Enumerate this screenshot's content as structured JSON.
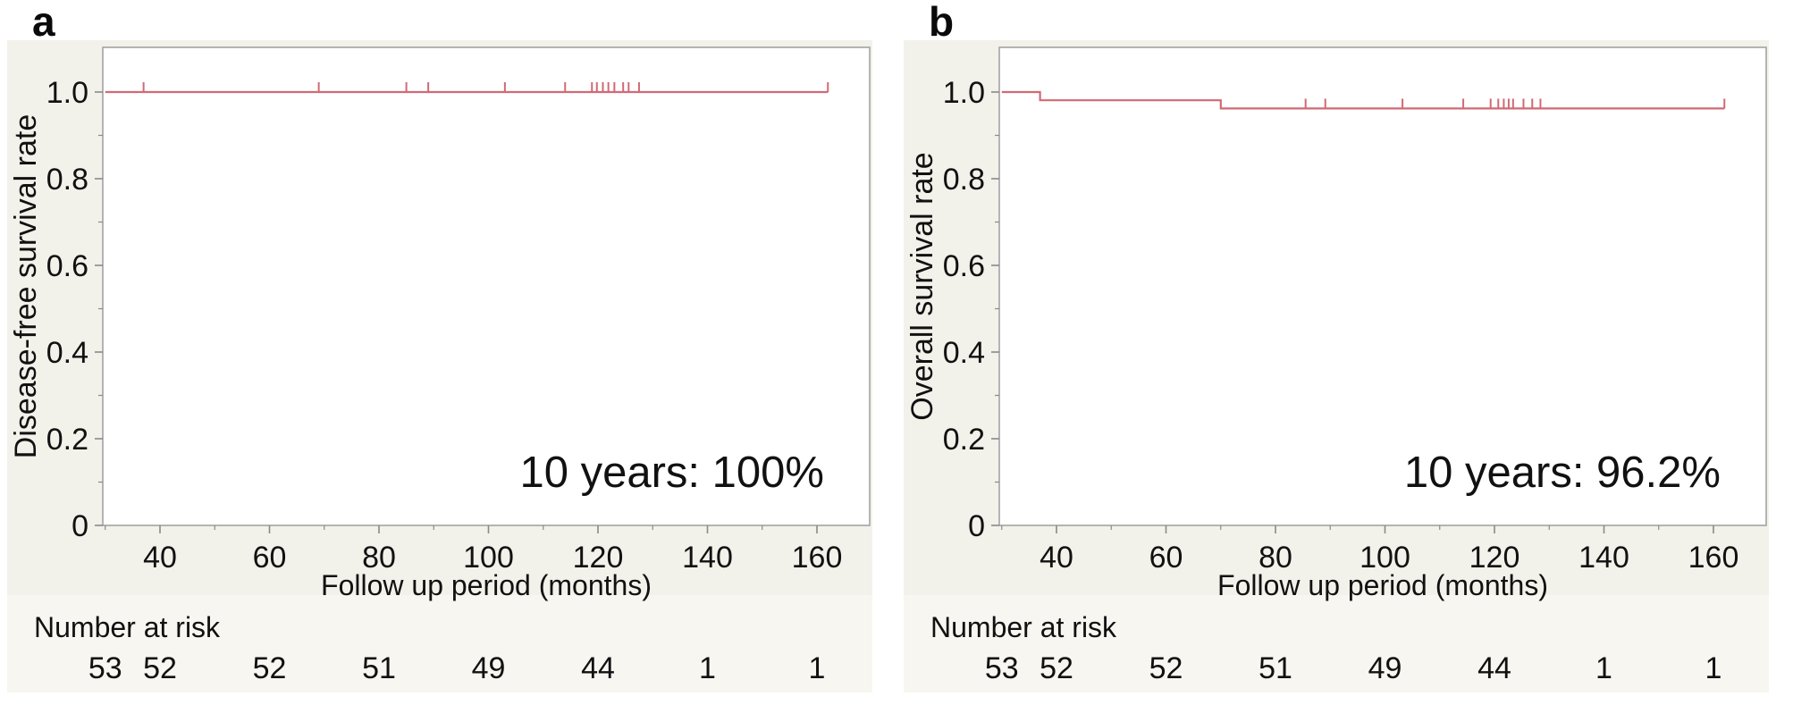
{
  "figure": {
    "colors": {
      "curve": "#d06a75",
      "card_bg": "#f2f1ea",
      "risk_bg": "#f7f6f1",
      "plot_bg": "#ffffff",
      "frame": "#9d9d9d",
      "tick": "#8a8a8a",
      "text": "#111111"
    }
  },
  "chart_data": [
    {
      "panel_label": "a",
      "type": "line",
      "subtype": "kaplan-meier-step",
      "title": "",
      "xlabel": "Follow up period (months)",
      "ylabel": "Disease-free survival rate",
      "xlim": [
        30,
        169.5
      ],
      "ylim": [
        0,
        1.1
      ],
      "xticks": [
        40,
        60,
        80,
        100,
        120,
        140,
        160
      ],
      "xtick_labels": [
        "40",
        "60",
        "80",
        "100",
        "120",
        "140",
        "160"
      ],
      "x_minor_ticks": [
        30,
        50,
        70,
        90,
        110,
        130,
        150
      ],
      "yticks": [
        0,
        0.2,
        0.4,
        0.6,
        0.8,
        1.0
      ],
      "ytick_labels": [
        "0",
        "0.2",
        "0.4",
        "0.6",
        "0.8",
        "1.0"
      ],
      "y_minor_ticks": [
        0.1,
        0.3,
        0.5,
        0.7,
        0.9
      ],
      "grid": false,
      "legend": "none",
      "annotation": "10 years: 100%",
      "series": [
        {
          "name": "Disease-free survival",
          "color": "#d06a75",
          "step_points": [
            [
              30,
              1.0
            ],
            [
              162,
              1.0
            ]
          ],
          "censor_times": [
            37,
            69,
            85,
            89,
            103,
            114,
            118.9,
            119.8,
            120.9,
            121.9,
            123,
            124.6,
            125.6,
            127.5,
            162
          ]
        }
      ],
      "number_at_risk": {
        "label": "Number at risk",
        "times": [
          30,
          40,
          60,
          80,
          100,
          120,
          140,
          160
        ],
        "values": [
          "53",
          "52",
          "52",
          "51",
          "49",
          "44",
          "1",
          "1"
        ]
      }
    },
    {
      "panel_label": "b",
      "type": "line",
      "subtype": "kaplan-meier-step",
      "title": "",
      "xlabel": "Follow up period (months)",
      "ylabel": "Overall survival rate",
      "xlim": [
        30,
        169.5
      ],
      "ylim": [
        0,
        1.1
      ],
      "xticks": [
        40,
        60,
        80,
        100,
        120,
        140,
        160
      ],
      "xtick_labels": [
        "40",
        "60",
        "80",
        "100",
        "120",
        "140",
        "160"
      ],
      "x_minor_ticks": [
        30,
        50,
        70,
        90,
        110,
        130,
        150
      ],
      "yticks": [
        0,
        0.2,
        0.4,
        0.6,
        0.8,
        1.0
      ],
      "ytick_labels": [
        "0",
        "0.2",
        "0.4",
        "0.6",
        "0.8",
        "1.0"
      ],
      "y_minor_ticks": [
        0.1,
        0.3,
        0.5,
        0.7,
        0.9
      ],
      "grid": false,
      "legend": "none",
      "annotation": "10 years: 96.2%",
      "series": [
        {
          "name": "Overall survival",
          "color": "#d06a75",
          "step_points": [
            [
              30,
              1.0
            ],
            [
              37,
              1.0
            ],
            [
              37,
              0.981
            ],
            [
              70,
              0.981
            ],
            [
              70,
              0.962
            ],
            [
              162,
              0.962
            ]
          ],
          "censor_times": [
            85.5,
            89.1,
            103.2,
            114.3,
            119.3,
            120.7,
            121.7,
            122.6,
            123.4,
            125.3,
            126.9,
            128.4,
            162
          ]
        }
      ],
      "number_at_risk": {
        "label": "Number at risk",
        "times": [
          30,
          40,
          60,
          80,
          100,
          120,
          140,
          160
        ],
        "values": [
          "53",
          "52",
          "52",
          "51",
          "49",
          "44",
          "1",
          "1"
        ]
      }
    }
  ]
}
